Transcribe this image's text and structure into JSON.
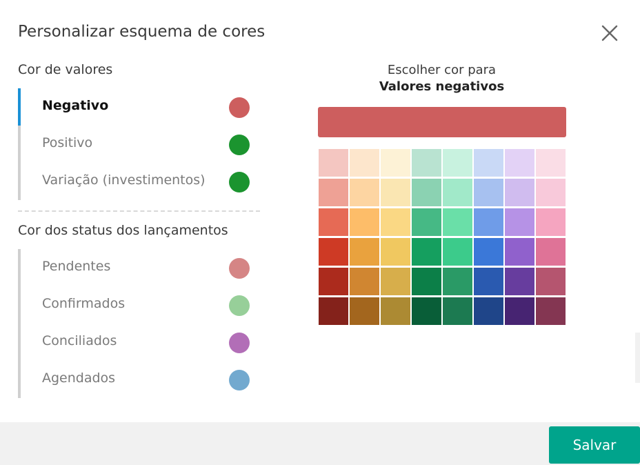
{
  "dialog": {
    "title": "Personalizar esquema de cores"
  },
  "icons": {
    "close": "close-icon"
  },
  "values_section": {
    "title": "Cor de valores",
    "items": [
      {
        "label": "Negativo",
        "color": "#cd5e5e",
        "active": true
      },
      {
        "label": "Positivo",
        "color": "#1b942f",
        "active": false
      },
      {
        "label": "Variação (investimentos)",
        "color": "#1b942f",
        "active": false
      }
    ]
  },
  "status_section": {
    "title": "Cor dos status dos lançamentos",
    "items": [
      {
        "label": "Pendentes",
        "color": "#d58585"
      },
      {
        "label": "Confirmados",
        "color": "#97cf99"
      },
      {
        "label": "Conciliados",
        "color": "#b26eb7"
      },
      {
        "label": "Agendados",
        "color": "#72a9cf"
      }
    ]
  },
  "picker": {
    "heading": "Escolher cor para",
    "target": "Valores negativos",
    "selected_color": "#cd5e5e",
    "palette": [
      [
        "#f4c6c1",
        "#fde6cc",
        "#fdf2d6",
        "#b9e3d1",
        "#c8f2df",
        "#c9d9f6",
        "#e3d2f6",
        "#fadde6"
      ],
      [
        "#eea195",
        "#fdd5a2",
        "#fae6b2",
        "#8bd2b2",
        "#a1e9c9",
        "#a7c1f0",
        "#d0bcef",
        "#f8c9da"
      ],
      [
        "#e66a55",
        "#fdbd69",
        "#fad884",
        "#46b985",
        "#6adfa8",
        "#6f9ce8",
        "#b692e6",
        "#f5a5c0"
      ],
      [
        "#ce3a25",
        "#e9a23e",
        "#f0c860",
        "#159f5f",
        "#3ccb8b",
        "#3b78d8",
        "#9061cc",
        "#df7397"
      ],
      [
        "#ac2b1d",
        "#d08631",
        "#d7ae4b",
        "#0c7f48",
        "#2a9a66",
        "#2a5ab0",
        "#673d9e",
        "#b5556f"
      ],
      [
        "#84221b",
        "#a3661e",
        "#ac8a33",
        "#095e38",
        "#1c7a51",
        "#1f4589",
        "#472472",
        "#843652"
      ]
    ]
  },
  "footer": {
    "save_label": "Salvar"
  },
  "colors": {
    "accent": "#1b91d6",
    "save_button": "#00a48c"
  }
}
